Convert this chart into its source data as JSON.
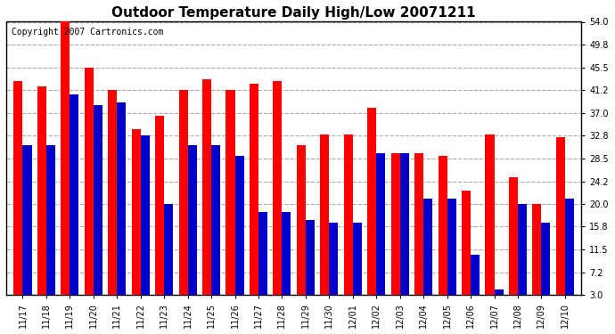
{
  "title": "Outdoor Temperature Daily High/Low 20071211",
  "copyright": "Copyright 2007 Cartronics.com",
  "dates": [
    "11/17",
    "11/18",
    "11/19",
    "11/20",
    "11/21",
    "11/22",
    "11/23",
    "11/24",
    "11/25",
    "11/26",
    "11/27",
    "11/28",
    "11/29",
    "11/30",
    "12/01",
    "12/02",
    "12/03",
    "12/04",
    "12/05",
    "12/06",
    "12/07",
    "12/08",
    "12/09",
    "12/10"
  ],
  "highs": [
    43.0,
    42.0,
    54.0,
    45.5,
    41.2,
    34.0,
    36.5,
    41.2,
    43.2,
    41.2,
    42.5,
    43.0,
    31.0,
    33.0,
    33.0,
    38.0,
    29.5,
    29.5,
    29.0,
    22.5,
    33.0,
    25.0,
    20.0,
    32.5
  ],
  "lows": [
    31.0,
    31.0,
    40.5,
    38.5,
    39.0,
    32.8,
    20.0,
    31.0,
    31.0,
    29.0,
    18.5,
    18.5,
    17.0,
    16.5,
    16.5,
    29.5,
    29.5,
    21.0,
    21.0,
    10.5,
    4.0,
    20.0,
    16.5,
    21.0
  ],
  "high_color": "#ff0000",
  "low_color": "#0000cc",
  "bg_color": "#ffffff",
  "plot_bg_color": "#ffffff",
  "grid_color": "#aaaaaa",
  "yticks": [
    3.0,
    7.2,
    11.5,
    15.8,
    20.0,
    24.2,
    28.5,
    32.8,
    37.0,
    41.2,
    45.5,
    49.8,
    54.0
  ],
  "ylim": [
    3.0,
    54.0
  ],
  "ybase": 3.0,
  "bar_width": 0.38,
  "title_fontsize": 11,
  "tick_fontsize": 7,
  "copyright_fontsize": 7
}
